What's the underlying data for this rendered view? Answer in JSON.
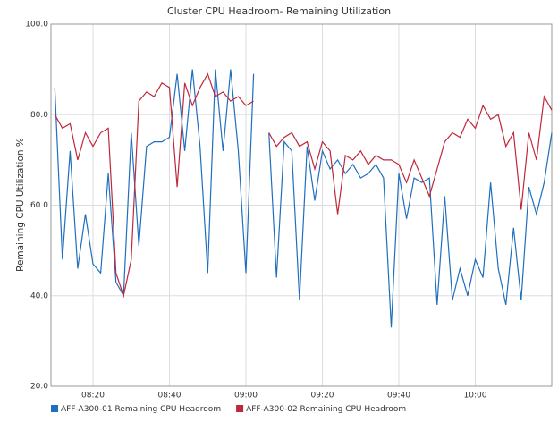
{
  "chart_data": {
    "type": "line",
    "title": "Cluster CPU Headroom- Remaining Utilization",
    "y_label": "Remaining CPU Utilization %",
    "x": [
      "08:10",
      "08:12",
      "08:14",
      "08:16",
      "08:18",
      "08:20",
      "08:22",
      "08:24",
      "08:26",
      "08:28",
      "08:30",
      "08:32",
      "08:34",
      "08:36",
      "08:38",
      "08:40",
      "08:42",
      "08:44",
      "08:46",
      "08:48",
      "08:50",
      "08:52",
      "08:54",
      "08:56",
      "08:58",
      "09:00",
      "09:02",
      "09:04",
      "09:06",
      "09:08",
      "09:10",
      "09:12",
      "09:14",
      "09:16",
      "09:18",
      "09:20",
      "09:22",
      "09:24",
      "09:26",
      "09:28",
      "09:30",
      "09:32",
      "09:34",
      "09:36",
      "09:38",
      "09:40",
      "09:42",
      "09:44",
      "09:46",
      "09:48",
      "09:50",
      "09:52",
      "09:54",
      "09:56",
      "09:58",
      "10:00",
      "10:02",
      "10:04",
      "10:06",
      "10:08",
      "10:10",
      "10:12",
      "10:14",
      "10:16",
      "10:18",
      "10:20"
    ],
    "series": [
      {
        "name": "AFF-A300-01 Remaining CPU Headroom",
        "color": "#1f6fbf",
        "values": [
          86,
          48,
          72,
          46,
          58,
          47,
          45,
          67,
          43,
          40,
          76,
          51,
          73,
          74,
          74,
          75,
          89,
          72,
          90,
          73,
          45,
          90,
          72,
          90,
          72,
          45,
          89,
          null,
          76,
          44,
          74,
          72,
          39,
          73,
          61,
          72,
          68,
          70,
          67,
          69,
          66,
          67,
          69,
          66,
          33,
          67,
          57,
          66,
          65,
          66,
          38,
          62,
          39,
          46,
          40,
          48,
          44,
          65,
          46,
          38,
          55,
          39,
          64,
          58,
          65,
          76
        ]
      },
      {
        "name": "AFF-A300-02 Remaining CPU Headroom",
        "color": "#c0273a",
        "values": [
          80,
          77,
          78,
          70,
          76,
          73,
          76,
          77,
          45,
          40,
          48,
          83,
          85,
          84,
          87,
          86,
          64,
          87,
          82,
          86,
          89,
          84,
          85,
          83,
          84,
          82,
          83,
          null,
          76,
          73,
          75,
          76,
          73,
          74,
          68,
          74,
          72,
          58,
          71,
          70,
          72,
          69,
          71,
          70,
          70,
          69,
          65,
          70,
          66,
          62,
          68,
          74,
          76,
          75,
          79,
          77,
          82,
          79,
          80,
          73,
          76,
          59,
          76,
          70,
          84,
          81
        ]
      }
    ],
    "xlim": [
      "08:09",
      "10:20"
    ],
    "xticks": [
      "08:20",
      "08:40",
      "09:00",
      "09:20",
      "09:40",
      "10:00"
    ],
    "ylim": [
      20,
      100
    ],
    "yticks": [
      {
        "value": 20,
        "label": "20.0"
      },
      {
        "value": 40,
        "label": "40.0"
      },
      {
        "value": 60,
        "label": "60.0"
      },
      {
        "value": 80,
        "label": "80.0"
      },
      {
        "value": 100,
        "label": "100.0"
      }
    ],
    "grid": true,
    "legend": "bottom"
  }
}
